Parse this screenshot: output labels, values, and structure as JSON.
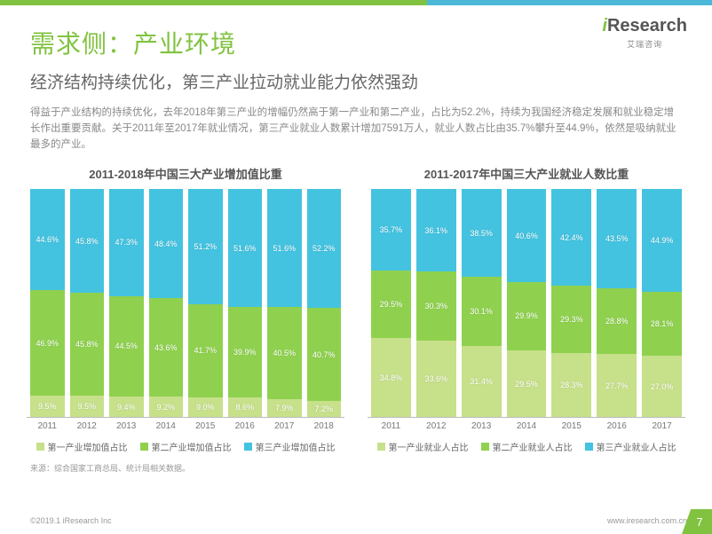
{
  "brand": {
    "name": "iResearch",
    "sub": "艾瑞咨询"
  },
  "title": "需求侧：产业环境",
  "subtitle": "经济结构持续优化，第三产业拉动就业能力依然强劲",
  "body": "得益于产业结构的持续优化，去年2018年第三产业的增幅仍然高于第一产业和第二产业，占比为52.2%，持续为我国经济稳定发展和就业稳定增长作出重要贡献。关于2011年至2017年就业情况，第三产业就业人数累计增加7591万人，就业人数占比由35.7%攀升至44.9%，依然是吸纳就业最多的产业。",
  "colors": {
    "primary_green": "#81c341",
    "series1": "#c7e08a",
    "series2": "#8fd14f",
    "series3": "#44c3e0",
    "text_muted": "#888888",
    "background": "#ffffff"
  },
  "chart_left": {
    "type": "stacked-bar",
    "title": "2011-2018年中国三大产业增加值比重",
    "years": [
      "2011",
      "2012",
      "2013",
      "2014",
      "2015",
      "2016",
      "2017",
      "2018"
    ],
    "series": [
      {
        "name": "第一产业增加值占比",
        "color": "#c7e08a",
        "values": [
          9.5,
          9.5,
          9.4,
          9.2,
          9.0,
          8.6,
          7.9,
          7.2
        ]
      },
      {
        "name": "第二产业增加值占比",
        "color": "#8fd14f",
        "values": [
          46.9,
          45.8,
          44.5,
          43.6,
          41.7,
          39.9,
          40.5,
          40.7
        ]
      },
      {
        "name": "第三产业增加值占比",
        "color": "#44c3e0",
        "values": [
          44.6,
          45.8,
          47.3,
          48.4,
          51.2,
          51.6,
          51.6,
          52.2
        ]
      }
    ],
    "ylim": [
      0,
      100
    ]
  },
  "chart_right": {
    "type": "stacked-bar",
    "title": "2011-2017年中国三大产业就业人数比重",
    "years": [
      "2011",
      "2012",
      "2013",
      "2014",
      "2015",
      "2016",
      "2017"
    ],
    "series": [
      {
        "name": "第一产业就业人占比",
        "color": "#c7e08a",
        "values": [
          34.8,
          33.6,
          31.4,
          29.5,
          28.3,
          27.7,
          27.0
        ]
      },
      {
        "name": "第二产业就业人占比",
        "color": "#8fd14f",
        "values": [
          29.5,
          30.3,
          30.1,
          29.9,
          29.3,
          28.8,
          28.1
        ]
      },
      {
        "name": "第三产业就业人占比",
        "color": "#44c3e0",
        "values": [
          35.7,
          36.1,
          38.5,
          40.6,
          42.4,
          43.5,
          44.9
        ]
      }
    ],
    "ylim": [
      0,
      100
    ]
  },
  "source": "来源：综合国家工商总局、统计局相关数据。",
  "copyright": "©2019.1 iResearch Inc",
  "website": "www.iresearch.com.cn",
  "page": "7"
}
